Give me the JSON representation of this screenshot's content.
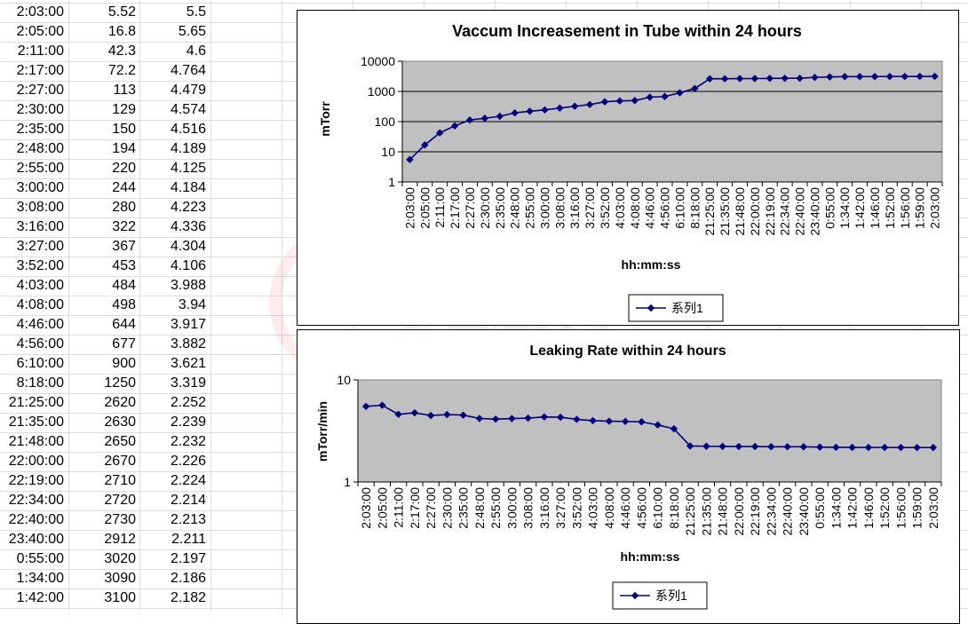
{
  "table": {
    "rows": [
      [
        "2:03:00",
        "5.52",
        "5.5"
      ],
      [
        "2:05:00",
        "16.8",
        "5.65"
      ],
      [
        "2:11:00",
        "42.3",
        "4.6"
      ],
      [
        "2:17:00",
        "72.2",
        "4.764"
      ],
      [
        "2:27:00",
        "113",
        "4.479"
      ],
      [
        "2:30:00",
        "129",
        "4.574"
      ],
      [
        "2:35:00",
        "150",
        "4.516"
      ],
      [
        "2:48:00",
        "194",
        "4.189"
      ],
      [
        "2:55:00",
        "220",
        "4.125"
      ],
      [
        "3:00:00",
        "244",
        "4.184"
      ],
      [
        "3:08:00",
        "280",
        "4.223"
      ],
      [
        "3:16:00",
        "322",
        "4.336"
      ],
      [
        "3:27:00",
        "367",
        "4.304"
      ],
      [
        "3:52:00",
        "453",
        "4.106"
      ],
      [
        "4:03:00",
        "484",
        "3.988"
      ],
      [
        "4:08:00",
        "498",
        "3.94"
      ],
      [
        "4:46:00",
        "644",
        "3.917"
      ],
      [
        "4:56:00",
        "677",
        "3.882"
      ],
      [
        "6:10:00",
        "900",
        "3.621"
      ],
      [
        "8:18:00",
        "1250",
        "3.319"
      ],
      [
        "21:25:00",
        "2620",
        "2.252"
      ],
      [
        "21:35:00",
        "2630",
        "2.239"
      ],
      [
        "21:48:00",
        "2650",
        "2.232"
      ],
      [
        "22:00:00",
        "2670",
        "2.226"
      ],
      [
        "22:19:00",
        "2710",
        "2.224"
      ],
      [
        "22:34:00",
        "2720",
        "2.214"
      ],
      [
        "22:40:00",
        "2730",
        "2.213"
      ],
      [
        "23:40:00",
        "2912",
        "2.211"
      ],
      [
        "0:55:00",
        "3020",
        "2.197"
      ],
      [
        "1:34:00",
        "3090",
        "2.186"
      ],
      [
        "1:42:00",
        "3100",
        "2.182"
      ]
    ]
  },
  "chart_data": [
    {
      "type": "line",
      "title": "Vaccum Increasement in Tube within 24 hours",
      "xlabel": "hh:mm:ss",
      "ylabel": "mTorr",
      "yscale": "log",
      "ylim": [
        1,
        10000
      ],
      "yticks": [
        "1",
        "10",
        "100",
        "1000",
        "10000"
      ],
      "grid": true,
      "legend_position": "bottom",
      "categories": [
        "2:03:00",
        "2:05:00",
        "2:11:00",
        "2:17:00",
        "2:27:00",
        "2:30:00",
        "2:35:00",
        "2:48:00",
        "2:55:00",
        "3:00:00",
        "3:08:00",
        "3:16:00",
        "3:27:00",
        "3:52:00",
        "4:03:00",
        "4:08:00",
        "4:46:00",
        "4:56:00",
        "6:10:00",
        "8:18:00",
        "21:25:00",
        "21:35:00",
        "21:48:00",
        "22:00:00",
        "22:19:00",
        "22:34:00",
        "22:40:00",
        "23:40:00",
        "0:55:00",
        "1:34:00",
        "1:42:00",
        "1:46:00",
        "1:52:00",
        "1:56:00",
        "1:59:00",
        "2:03:00"
      ],
      "series": [
        {
          "name": "系列1",
          "values": [
            5.52,
            16.8,
            42.3,
            72.2,
            113,
            129,
            150,
            194,
            220,
            244,
            280,
            322,
            367,
            453,
            484,
            498,
            644,
            677,
            900,
            1250,
            2620,
            2630,
            2650,
            2670,
            2710,
            2720,
            2730,
            2912,
            3020,
            3090,
            3100,
            3110,
            3120,
            3130,
            3140,
            3150
          ]
        }
      ],
      "colors": {
        "line": "#000080",
        "plot_bg": "#c0c0c0"
      }
    },
    {
      "type": "line",
      "title": "Leaking Rate within 24 hours",
      "xlabel": "hh:mm:ss",
      "ylabel": "mTorr/min",
      "yscale": "log",
      "ylim": [
        1,
        10
      ],
      "yticks": [
        "1",
        "10"
      ],
      "grid": false,
      "legend_position": "bottom",
      "categories": [
        "2:03:00",
        "2:05:00",
        "2:11:00",
        "2:17:00",
        "2:27:00",
        "2:30:00",
        "2:35:00",
        "2:48:00",
        "2:55:00",
        "3:00:00",
        "3:08:00",
        "3:16:00",
        "3:27:00",
        "3:52:00",
        "4:03:00",
        "4:08:00",
        "4:46:00",
        "4:56:00",
        "6:10:00",
        "8:18:00",
        "21:25:00",
        "21:35:00",
        "21:48:00",
        "22:00:00",
        "22:19:00",
        "22:34:00",
        "22:40:00",
        "23:40:00",
        "0:55:00",
        "1:34:00",
        "1:42:00",
        "1:46:00",
        "1:52:00",
        "1:56:00",
        "1:59:00",
        "2:03:00"
      ],
      "series": [
        {
          "name": "系列1",
          "values": [
            5.5,
            5.65,
            4.6,
            4.764,
            4.479,
            4.574,
            4.516,
            4.189,
            4.125,
            4.184,
            4.223,
            4.336,
            4.304,
            4.106,
            3.988,
            3.94,
            3.917,
            3.882,
            3.621,
            3.319,
            2.252,
            2.239,
            2.232,
            2.226,
            2.224,
            2.214,
            2.213,
            2.211,
            2.197,
            2.186,
            2.182,
            2.18,
            2.178,
            2.176,
            2.175,
            2.173
          ]
        }
      ],
      "colors": {
        "line": "#000080",
        "plot_bg": "#c0c0c0"
      }
    }
  ]
}
